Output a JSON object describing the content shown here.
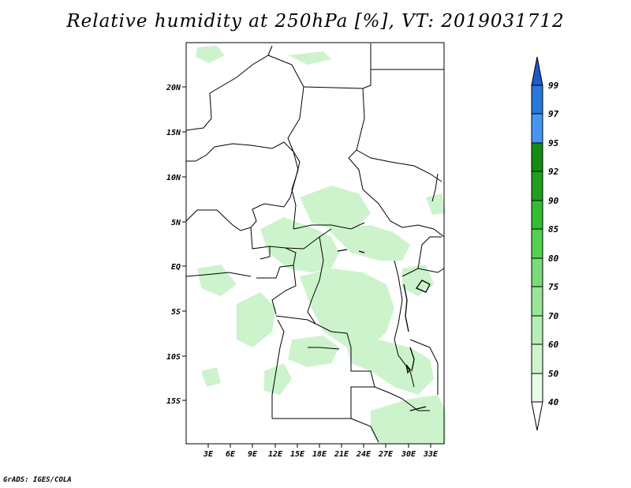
{
  "title": "Relative humidity at 250hPa [%], VT: 2019031712",
  "credit": "GrADS: IGES/COLA",
  "map": {
    "lat_labels": [
      "20N",
      "15N",
      "10N",
      "5N",
      "EQ",
      "5S",
      "10S",
      "15S"
    ],
    "lon_labels": [
      "3E",
      "6E",
      "9E",
      "12E",
      "15E",
      "18E",
      "21E",
      "24E",
      "27E",
      "30E",
      "33E"
    ]
  },
  "legend": {
    "levels": [
      "40",
      "50",
      "60",
      "70",
      "75",
      "80",
      "85",
      "90",
      "92",
      "95",
      "97",
      "99"
    ],
    "colors": {
      "band_40_50": "#e6fae6",
      "band_50_60": "#ccf5cc",
      "band_60_70": "#b4f0b4",
      "band_70_75": "#99e699",
      "band_75_80": "#78dc78",
      "band_80_85": "#50d250",
      "band_85_90": "#32be32",
      "band_90_92": "#1ea01e",
      "band_92_95": "#148c14",
      "band_95_97": "#4696f0",
      "band_97_99": "#2878dc",
      "band_99_up": "#1e5ac8"
    }
  },
  "colors": {
    "land_moist": "#cdf3cd",
    "border": "#000000",
    "frame": "#000000"
  }
}
